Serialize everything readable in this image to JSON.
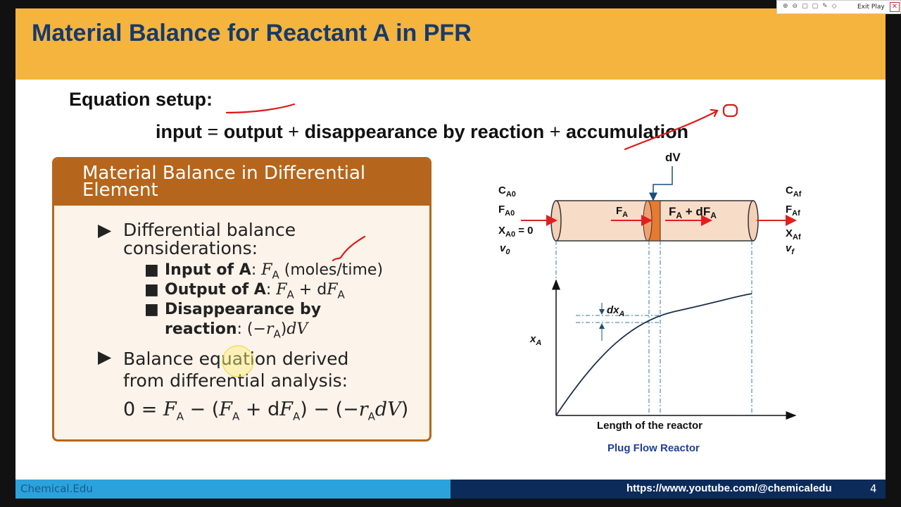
{
  "toolbar": {
    "exit": "Exit Play"
  },
  "slide": {
    "title": "Material Balance for Reactant A in PFR",
    "setup": "Equation setup:",
    "equation": [
      "input",
      "=",
      "output",
      "+",
      "disappearance by reaction",
      "+",
      "accumulation"
    ],
    "box": {
      "title": "Material Balance in Differential Element",
      "bullets": [
        {
          "text": "Differential balance considerations:",
          "items": [
            [
              "Input of A",
              ":",
              "F",
              "A",
              "(moles/time)"
            ],
            [
              "Output of A",
              ":",
              "F",
              "A",
              "+ d",
              "F",
              "A"
            ],
            [
              "Disappearance by reaction",
              ":",
              "(−",
              "r",
              "A",
              ")",
              "dV"
            ]
          ]
        },
        {
          "text": "Balance equation derived from differential analysis:",
          "equation": [
            "0 = ",
            "F",
            "A",
            " − (",
            "F",
            "A",
            " + d",
            "F",
            "A",
            ") − (−",
            "r",
            "A",
            "dV",
            ")"
          ]
        }
      ]
    },
    "diagram": {
      "inlet": [
        [
          "C",
          "A0"
        ],
        [
          "F",
          "A0"
        ],
        [
          "X",
          "A0",
          " = 0"
        ],
        [
          "v",
          "0"
        ]
      ],
      "outlet": [
        [
          "C",
          "Af"
        ],
        [
          "F",
          "Af"
        ],
        [
          "X",
          "Af"
        ],
        [
          "v",
          "f"
        ]
      ],
      "dv": "dV",
      "flow_in": [
        "F",
        "A"
      ],
      "flow_out": [
        "F",
        "A",
        " + dF",
        "A"
      ],
      "dx": [
        "dx",
        "A"
      ],
      "y_axis": [
        "x",
        "A"
      ],
      "x_axis": "Length of the reactor",
      "caption": "Plug Flow Reactor"
    }
  },
  "footer": {
    "left": "Chemical.Edu",
    "url": "https://www.youtube.com/@chemicaledu",
    "page": "4"
  }
}
